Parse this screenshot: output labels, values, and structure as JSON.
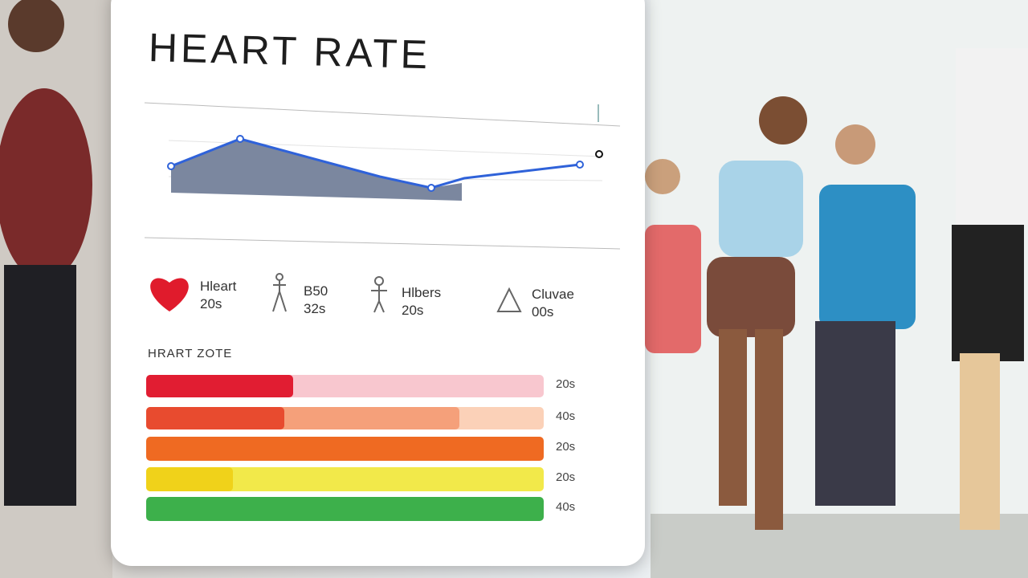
{
  "header": {
    "title": "HEART RATE"
  },
  "stats": [
    {
      "label": "Hleart",
      "value": "20s"
    },
    {
      "label": "B50",
      "value": "32s"
    },
    {
      "label": "Hlbers",
      "value": "20s"
    },
    {
      "label": "Cluvae",
      "value": "00s"
    }
  ],
  "zones": {
    "title": "HRART ZOTE",
    "rows": [
      {
        "label": "20s"
      },
      {
        "label": "40s"
      },
      {
        "label": "20s"
      },
      {
        "label": "20s"
      },
      {
        "label": "40s"
      }
    ]
  }
}
